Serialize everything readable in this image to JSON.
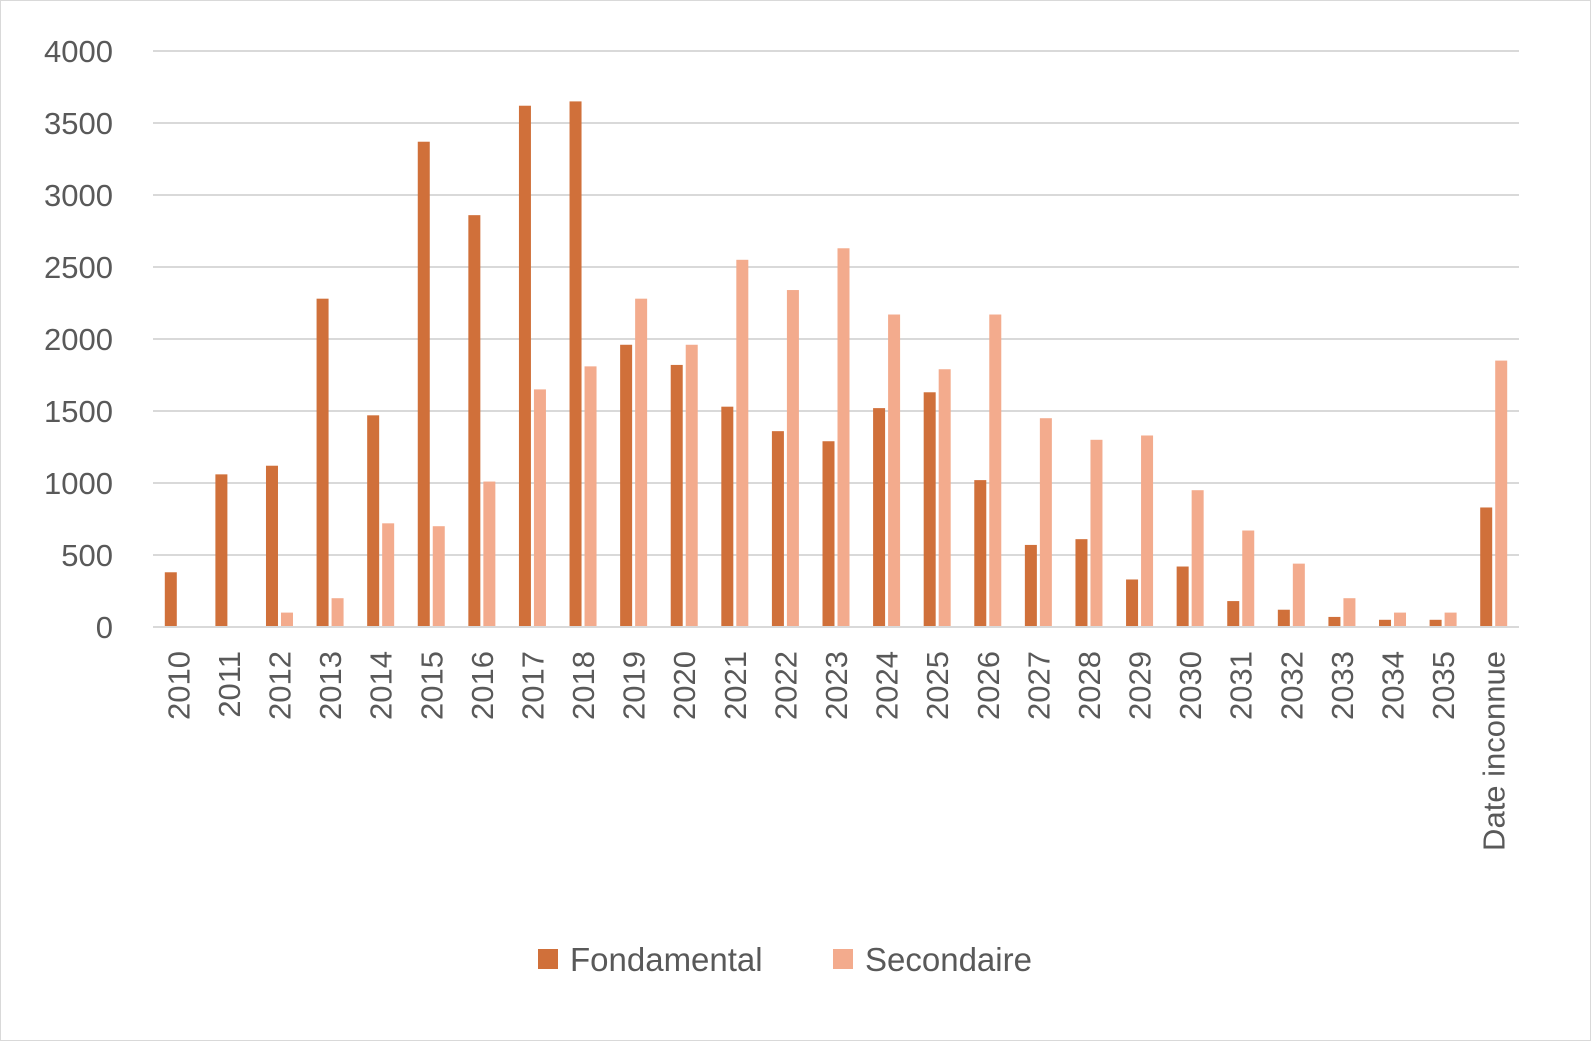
{
  "chart_data": {
    "type": "bar",
    "categories": [
      "2010",
      "2011",
      "2012",
      "2013",
      "2014",
      "2015",
      "2016",
      "2017",
      "2018",
      "2019",
      "2020",
      "2021",
      "2022",
      "2023",
      "2024",
      "2025",
      "2026",
      "2027",
      "2028",
      "2029",
      "2030",
      "2031",
      "2032",
      "2033",
      "2034",
      "2035",
      "Date inconnue"
    ],
    "series": [
      {
        "name": "Fondamental",
        "color": "#d0703a",
        "values": [
          380,
          1060,
          1120,
          2280,
          1470,
          3370,
          2860,
          3620,
          3650,
          1960,
          1820,
          1530,
          1360,
          1290,
          1520,
          1630,
          1020,
          570,
          610,
          330,
          420,
          180,
          120,
          70,
          50,
          50,
          830
        ]
      },
      {
        "name": "Secondaire",
        "color": "#f3ab8d",
        "values": [
          0,
          0,
          100,
          200,
          720,
          700,
          1010,
          1650,
          1810,
          2280,
          1960,
          2550,
          2340,
          2630,
          2170,
          1790,
          2170,
          1450,
          1300,
          1330,
          950,
          670,
          440,
          200,
          100,
          100,
          1850
        ]
      }
    ],
    "yticks": [
      "0",
      "500",
      "1000",
      "1500",
      "2000",
      "2500",
      "3000",
      "3500",
      "4000"
    ],
    "ylim": [
      0,
      4000
    ],
    "grid": true,
    "legend": "bottom",
    "title": "",
    "xlabel": "",
    "ylabel": ""
  }
}
